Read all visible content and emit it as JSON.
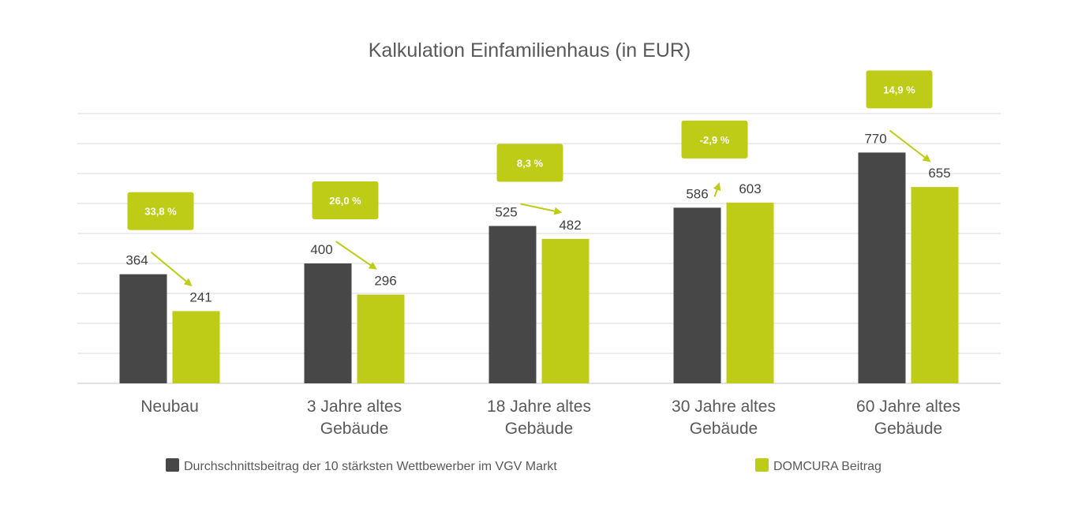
{
  "chart_data": {
    "type": "bar",
    "title": "Kalkulation Einfamilienhaus (in EUR)",
    "categories": [
      [
        "Neubau"
      ],
      [
        "3 Jahre altes",
        "Gebäude"
      ],
      [
        "18 Jahre altes",
        "Gebäude"
      ],
      [
        "30 Jahre altes",
        "Gebäude"
      ],
      [
        "60 Jahre altes",
        "Gebäude"
      ]
    ],
    "series": [
      {
        "name": "Durchschnittsbeitrag der 10 stärksten Wettbewerber im VGV Markt",
        "color": "#474747",
        "values": [
          364,
          400,
          525,
          586,
          770
        ]
      },
      {
        "name": "DOMCURA Beitrag",
        "color": "#bfcc17",
        "values": [
          241,
          296,
          482,
          603,
          655
        ]
      }
    ],
    "annotations": [
      "33,8 %",
      "26,0 %",
      "8,3 %",
      "-2,9 %",
      "14,9 %"
    ],
    "ylim": [
      0,
      900
    ],
    "grid": true,
    "yaxis_labels_shown": false,
    "legend_position": "bottom",
    "colors": {
      "competitor": "#474747",
      "domcura": "#bfcc17",
      "grid": "#d9d9d9",
      "text": "#595959"
    }
  }
}
